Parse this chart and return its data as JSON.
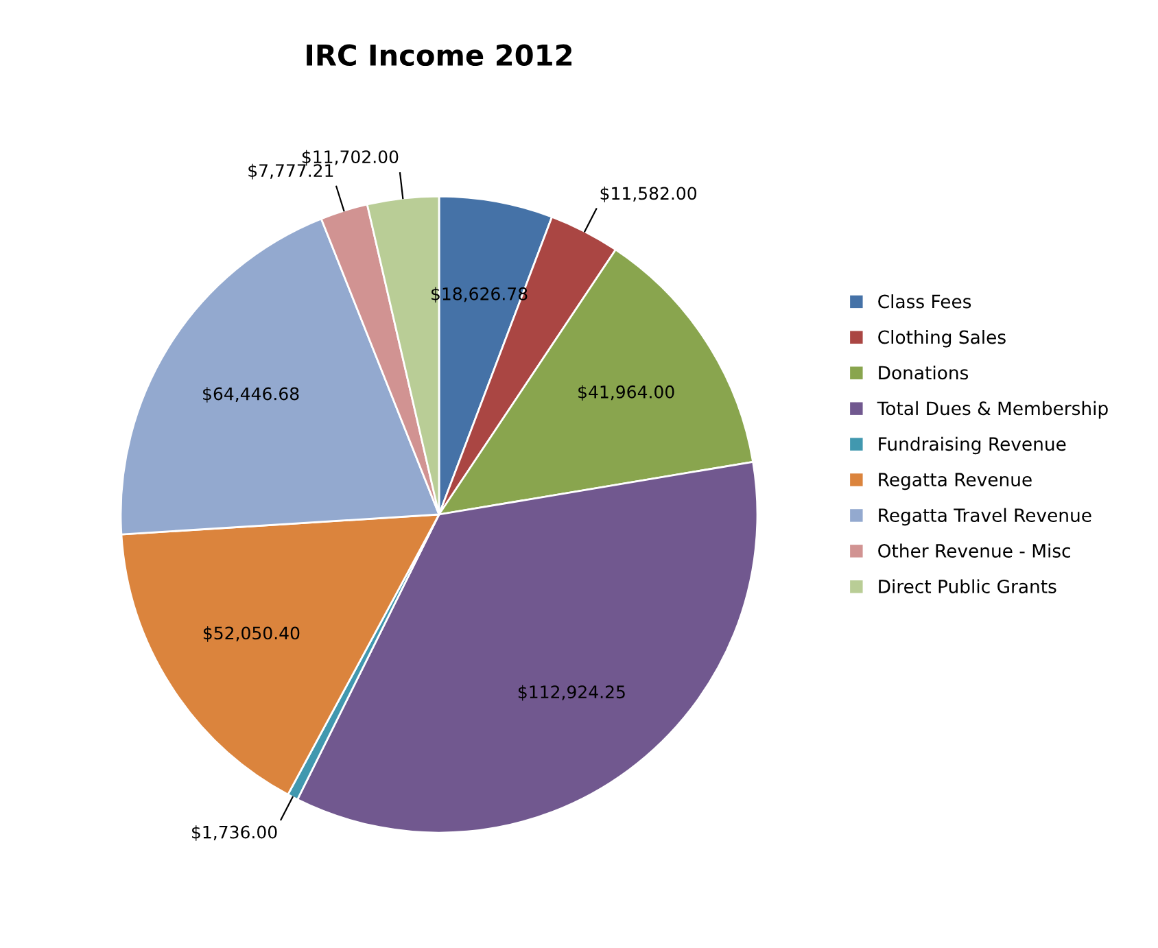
{
  "chart_data": {
    "type": "pie",
    "title": "IRC Income 2012",
    "categories": [
      "Class Fees",
      "Clothing Sales",
      "Donations",
      "Total Dues & Membership",
      "Fundraising Revenue",
      "Regatta Revenue",
      "Regatta Travel Revenue",
      "Other Revenue - Misc",
      "Direct Public Grants"
    ],
    "values": [
      18626.78,
      11582.0,
      41964.0,
      112924.25,
      1736.0,
      52050.4,
      64446.68,
      7777.21,
      11702.0
    ],
    "value_labels": [
      "$18,626.78",
      "$11,582.00",
      "$41,964.00",
      "$112,924.25",
      "$1,736.00",
      "$52,050.40",
      "$64,446.68",
      "$7,777.21",
      "$11,702.00"
    ],
    "colors": [
      "#4572a7",
      "#aa4643",
      "#89a54e",
      "#71588f",
      "#4198af",
      "#db843d",
      "#93a9cf",
      "#d19392",
      "#b9cd96"
    ],
    "legend": "right"
  }
}
